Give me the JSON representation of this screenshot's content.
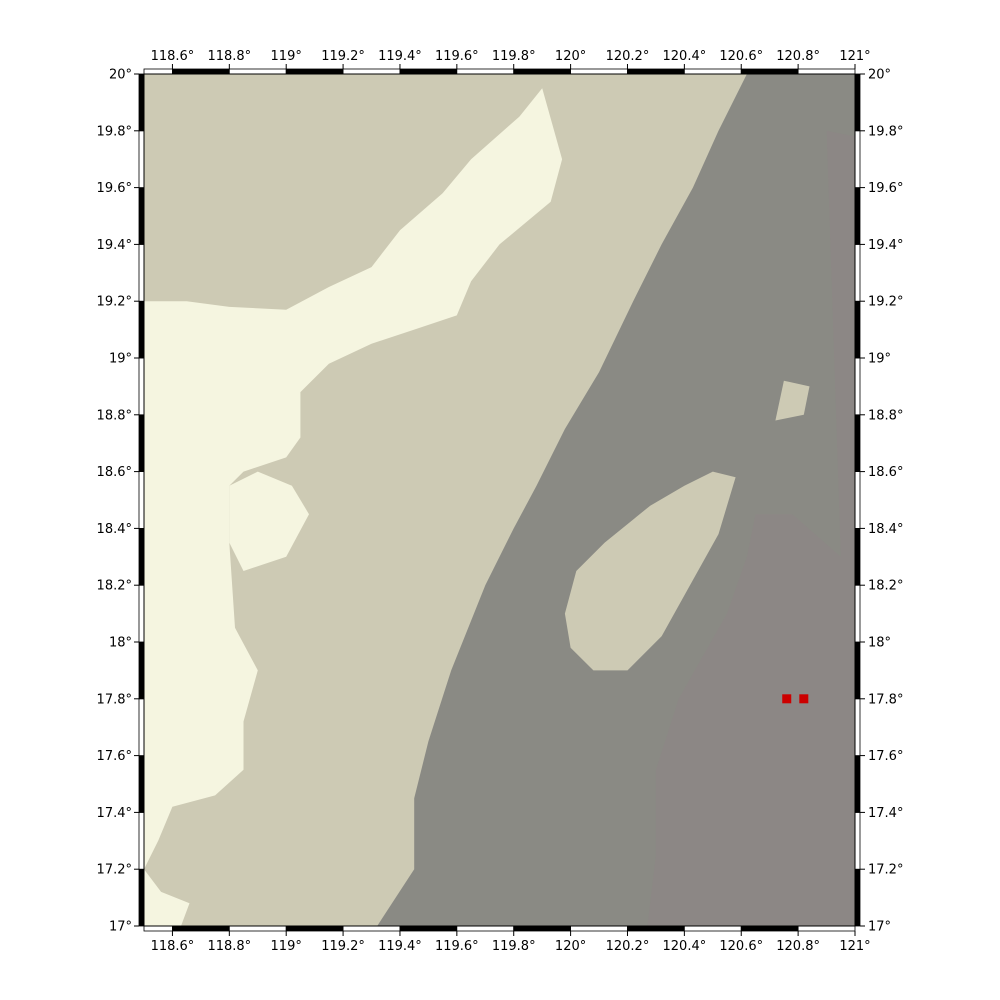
{
  "map": {
    "lon_range": [
      118.5,
      121.0
    ],
    "lat_range": [
      17.0,
      20.0
    ],
    "lon_ticks": [
      {
        "value": 118.6,
        "label": "118.6°"
      },
      {
        "value": 118.8,
        "label": "118.8°"
      },
      {
        "value": 119.0,
        "label": "119°"
      },
      {
        "value": 119.2,
        "label": "119.2°"
      },
      {
        "value": 119.4,
        "label": "119.4°"
      },
      {
        "value": 119.6,
        "label": "119.6°"
      },
      {
        "value": 119.8,
        "label": "119.8°"
      },
      {
        "value": 120.0,
        "label": "120°"
      },
      {
        "value": 120.2,
        "label": "120.2°"
      },
      {
        "value": 120.4,
        "label": "120.4°"
      },
      {
        "value": 120.6,
        "label": "120.6°"
      },
      {
        "value": 120.8,
        "label": "120.8°"
      },
      {
        "value": 121.0,
        "label": "121°"
      }
    ],
    "lat_ticks": [
      {
        "value": 17.0,
        "label": "17°"
      },
      {
        "value": 17.2,
        "label": "17.2°"
      },
      {
        "value": 17.4,
        "label": "17.4°"
      },
      {
        "value": 17.6,
        "label": "17.6°"
      },
      {
        "value": 17.8,
        "label": "17.8°"
      },
      {
        "value": 18.0,
        "label": "18°"
      },
      {
        "value": 18.2,
        "label": "18.2°"
      },
      {
        "value": 18.4,
        "label": "18.4°"
      },
      {
        "value": 18.6,
        "label": "18.6°"
      },
      {
        "value": 18.8,
        "label": "18.8°"
      },
      {
        "value": 19.0,
        "label": "19°"
      },
      {
        "value": 19.2,
        "label": "19.2°"
      },
      {
        "value": 19.4,
        "label": "19.4°"
      },
      {
        "value": 19.6,
        "label": "19.6°"
      },
      {
        "value": 19.8,
        "label": "19.8°"
      },
      {
        "value": 20.0,
        "label": "20°"
      }
    ],
    "colors": {
      "pale": "#f5f5e0",
      "medium": "#cdcab4",
      "deep": "#8a8a84",
      "deepest": "#8c8785",
      "marker": "#cc0000",
      "frame": "#000000"
    },
    "zones": [
      {
        "class": "pale",
        "polygon": [
          [
            118.5,
            19.2
          ],
          [
            118.65,
            19.2
          ],
          [
            118.8,
            19.18
          ],
          [
            119.0,
            19.17
          ],
          [
            119.15,
            19.25
          ],
          [
            119.3,
            19.32
          ],
          [
            119.4,
            19.45
          ],
          [
            119.55,
            19.58
          ],
          [
            119.65,
            19.7
          ],
          [
            119.82,
            19.85
          ],
          [
            119.9,
            19.95
          ],
          [
            119.97,
            19.7
          ],
          [
            119.93,
            19.55
          ],
          [
            119.75,
            19.4
          ],
          [
            119.65,
            19.27
          ],
          [
            119.6,
            19.15
          ],
          [
            119.45,
            19.1
          ],
          [
            119.3,
            19.05
          ],
          [
            119.15,
            18.98
          ],
          [
            119.05,
            18.88
          ],
          [
            119.05,
            18.72
          ],
          [
            119.0,
            18.65
          ],
          [
            118.85,
            18.6
          ],
          [
            118.8,
            18.55
          ],
          [
            118.8,
            18.35
          ],
          [
            118.82,
            18.05
          ],
          [
            118.9,
            17.9
          ],
          [
            118.85,
            17.72
          ],
          [
            118.85,
            17.55
          ],
          [
            118.75,
            17.46
          ],
          [
            118.6,
            17.42
          ],
          [
            118.55,
            17.3
          ],
          [
            118.5,
            17.2
          ]
        ]
      },
      {
        "class": "pale",
        "polygon": [
          [
            118.8,
            18.55
          ],
          [
            118.9,
            18.6
          ],
          [
            119.02,
            18.55
          ],
          [
            119.08,
            18.45
          ],
          [
            119.0,
            18.3
          ],
          [
            118.85,
            18.25
          ],
          [
            118.8,
            18.35
          ]
        ]
      },
      {
        "class": "pale",
        "polygon": [
          [
            118.5,
            17.2
          ],
          [
            118.56,
            17.12
          ],
          [
            118.66,
            17.08
          ],
          [
            118.63,
            17.0
          ],
          [
            118.5,
            17.0
          ]
        ]
      },
      {
        "class": "deep",
        "polygon": [
          [
            120.62,
            20.0
          ],
          [
            121.0,
            20.0
          ],
          [
            121.0,
            17.0
          ],
          [
            119.32,
            17.0
          ],
          [
            119.45,
            17.2
          ],
          [
            119.45,
            17.45
          ],
          [
            119.5,
            17.65
          ],
          [
            119.58,
            17.9
          ],
          [
            119.7,
            18.2
          ],
          [
            119.8,
            18.4
          ],
          [
            119.88,
            18.55
          ],
          [
            119.98,
            18.75
          ],
          [
            120.1,
            18.95
          ],
          [
            120.22,
            19.2
          ],
          [
            120.32,
            19.4
          ],
          [
            120.43,
            19.6
          ],
          [
            120.52,
            19.8
          ]
        ]
      },
      {
        "class": "deepest",
        "polygon": [
          [
            120.9,
            19.8
          ],
          [
            121.0,
            19.78
          ],
          [
            121.0,
            17.0
          ],
          [
            120.27,
            17.0
          ],
          [
            120.3,
            17.25
          ],
          [
            120.3,
            17.55
          ],
          [
            120.38,
            17.8
          ],
          [
            120.55,
            18.1
          ],
          [
            120.62,
            18.3
          ],
          [
            120.65,
            18.45
          ],
          [
            120.78,
            18.45
          ],
          [
            120.95,
            18.3
          ]
        ]
      },
      {
        "class": "medium",
        "polygon": [
          [
            119.98,
            18.1
          ],
          [
            120.02,
            18.25
          ],
          [
            120.12,
            18.35
          ],
          [
            120.28,
            18.48
          ],
          [
            120.4,
            18.55
          ],
          [
            120.5,
            18.6
          ],
          [
            120.58,
            18.58
          ],
          [
            120.52,
            18.38
          ],
          [
            120.42,
            18.2
          ],
          [
            120.32,
            18.02
          ],
          [
            120.2,
            17.9
          ],
          [
            120.08,
            17.9
          ],
          [
            120.0,
            17.98
          ]
        ]
      },
      {
        "class": "medium",
        "polygon": [
          [
            120.72,
            18.78
          ],
          [
            120.82,
            18.8
          ],
          [
            120.84,
            18.9
          ],
          [
            120.75,
            18.92
          ]
        ]
      }
    ],
    "markers": [
      {
        "lon": 120.76,
        "lat": 17.8
      },
      {
        "lon": 120.82,
        "lat": 17.8
      }
    ]
  }
}
